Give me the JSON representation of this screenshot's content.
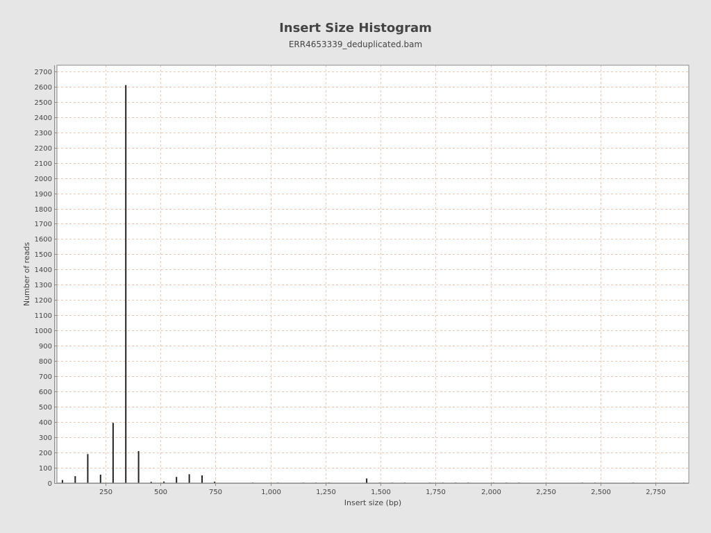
{
  "chart_data": {
    "type": "bar",
    "title": "Insert Size Histogram",
    "subtitle": "ERR4653339_deduplicated.bam",
    "xlabel": "Insert size (bp)",
    "ylabel": "Number of reads",
    "xlim": [
      30,
      2900
    ],
    "ylim": [
      0,
      2740
    ],
    "x_ticks": [
      250,
      500,
      750,
      1000,
      1250,
      1500,
      1750,
      2000,
      2250,
      2500,
      2750
    ],
    "x_tick_labels": [
      "250",
      "500",
      "750",
      "1,000",
      "1,250",
      "1,500",
      "1,750",
      "2,000",
      "2,250",
      "2,500",
      "2,750"
    ],
    "y_ticks": [
      0,
      100,
      200,
      300,
      400,
      500,
      600,
      700,
      800,
      900,
      1000,
      1100,
      1200,
      1300,
      1400,
      1500,
      1600,
      1700,
      1800,
      1900,
      2000,
      2100,
      2200,
      2300,
      2400,
      2500,
      2600,
      2700
    ],
    "y_tick_labels": [
      "0",
      "100",
      "200",
      "300",
      "400",
      "500",
      "600",
      "700",
      "800",
      "900",
      "1000",
      "1100",
      "1200",
      "1300",
      "1400",
      "1500",
      "1600",
      "1700",
      "1800",
      "1900",
      "2000",
      "2100",
      "2200",
      "2300",
      "2400",
      "2500",
      "2600",
      "2700"
    ],
    "grid": true,
    "colors": {
      "background": "#e6e6e6",
      "plot_background": "#ffffff",
      "grid": "#f0c8b0",
      "bar": "#222222",
      "axis": "#888888",
      "text": "#444444"
    },
    "x": [
      55,
      113,
      170,
      228,
      285,
      343,
      401,
      458,
      516,
      573,
      631,
      689,
      746,
      919,
      1034,
      1149,
      1207,
      1265,
      1437,
      1495,
      1552,
      1610,
      1725,
      1783,
      1841,
      1898,
      2013,
      2071,
      2129,
      2417,
      2474,
      2647,
      2877
    ],
    "values": [
      20,
      45,
      190,
      55,
      395,
      2610,
      210,
      8,
      10,
      40,
      58,
      50,
      8,
      3,
      3,
      3,
      3,
      3,
      30,
      3,
      3,
      3,
      3,
      3,
      3,
      3,
      3,
      3,
      3,
      3,
      3,
      3,
      3
    ]
  }
}
